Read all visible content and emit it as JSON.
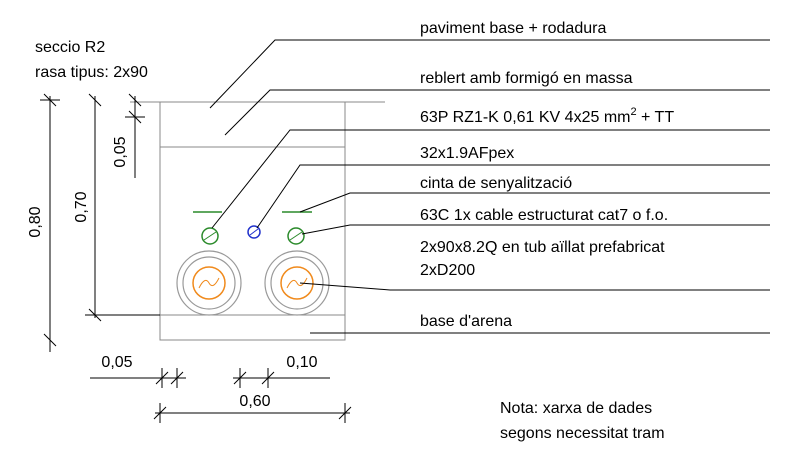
{
  "title": [
    "seccio R2",
    "rasa tipus: 2x90"
  ],
  "labels": [
    {
      "text": "paviment base + rodadura"
    },
    {
      "text": "reblert amb formigó en massa"
    },
    {
      "text": "63P RZ1-K 0,61 KV 4x25 mm",
      "sup": "2",
      "after": " + TT"
    },
    {
      "text": "32x1.9AFpex"
    },
    {
      "text": "cinta de senyalització"
    },
    {
      "text": "63C 1x cable estructurat cat7 o f.o."
    },
    {
      "text": "2x90x8.2Q en tub aïllat prefabricat",
      "line2": "2xD200"
    },
    {
      "text": "base d'arena"
    }
  ],
  "dimensions": {
    "total_depth": "0,80",
    "depth": "0,70",
    "top": "0,05",
    "side": "0,05",
    "gap": "0,10",
    "width": "0,60"
  },
  "note": [
    "Nota: xarxa de dades",
    "segons necessitat tram"
  ]
}
